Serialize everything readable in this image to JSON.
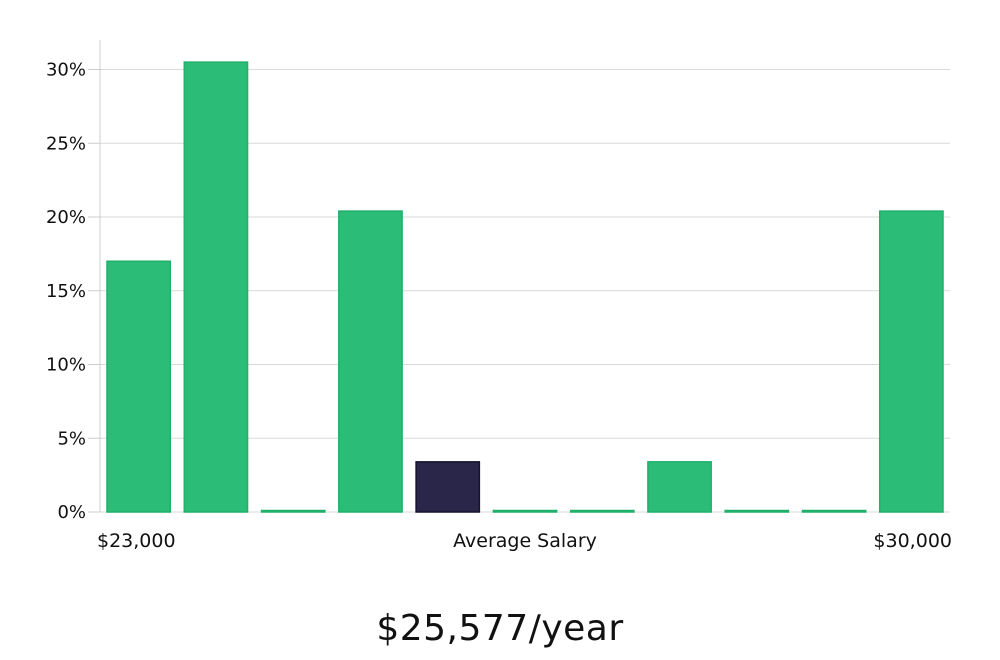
{
  "chart_data": {
    "type": "bar",
    "title": "",
    "xlabel": "Average Salary",
    "ylabel": "",
    "x_range_labels": {
      "min": "$23,000",
      "max": "$30,000"
    },
    "ylim": [
      0,
      32
    ],
    "yticks": [
      0,
      5,
      10,
      15,
      20,
      25,
      30
    ],
    "ytick_suffix": "%",
    "grid": true,
    "values": [
      17,
      30.5,
      0,
      20.4,
      3.4,
      0,
      0,
      3.4,
      0,
      0,
      20.4
    ],
    "highlight_index": 4,
    "colors": {
      "bar": "#2bbd77",
      "bar_stroke": "#1fb06a",
      "highlight": "#29264a",
      "grid": "#d9d9d9",
      "axis": "#cccccc"
    }
  },
  "summary": {
    "salary_text": "$25,577/year"
  }
}
